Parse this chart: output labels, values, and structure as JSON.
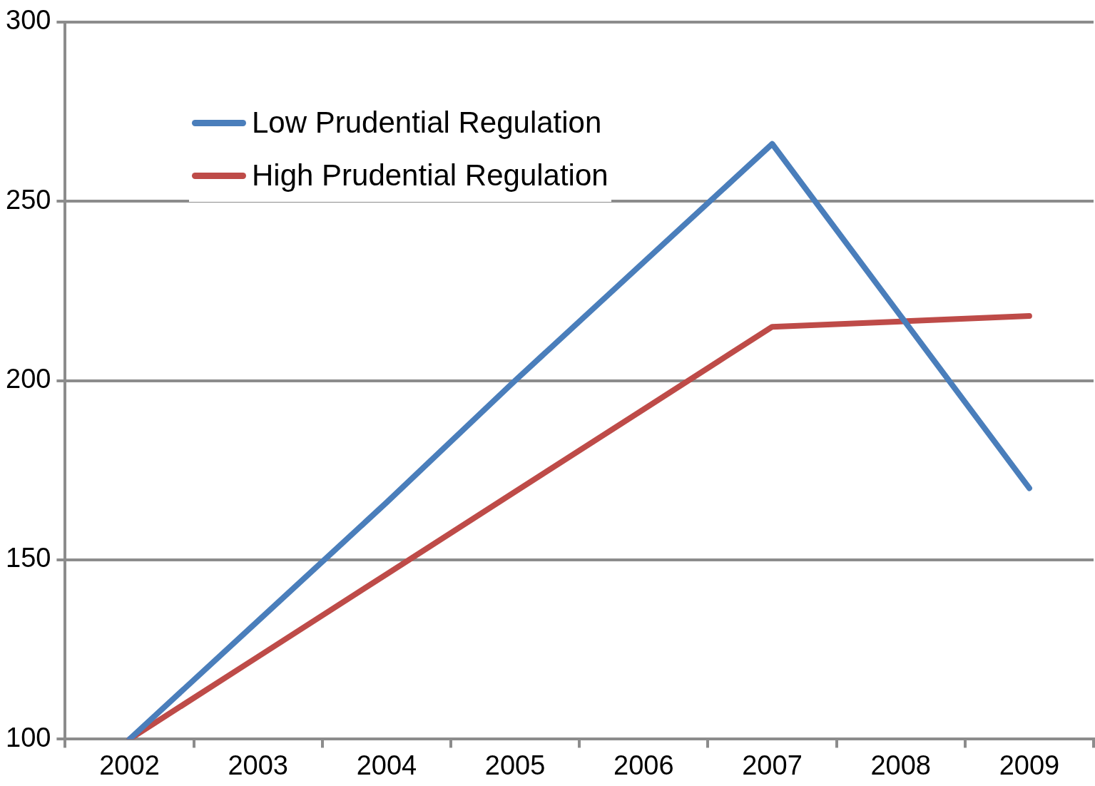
{
  "chart_data": {
    "type": "line",
    "categories": [
      "2002",
      "2003",
      "2004",
      "2005",
      "2006",
      "2007",
      "2008",
      "2009"
    ],
    "series": [
      {
        "name": "Low Prudential Regulation",
        "color": "#4a7ebb",
        "values": [
          100,
          133,
          166,
          200,
          233,
          266,
          218,
          170
        ]
      },
      {
        "name": "High Prudential Regulation",
        "color": "#be4b48",
        "values": [
          100,
          123,
          146,
          169,
          192,
          215,
          216.5,
          218
        ]
      }
    ],
    "ylim": [
      100,
      300
    ],
    "yticks": [
      100,
      150,
      200,
      250,
      300
    ],
    "grid": "y",
    "legend": "top left",
    "marker": "none",
    "line_style": "solid"
  }
}
